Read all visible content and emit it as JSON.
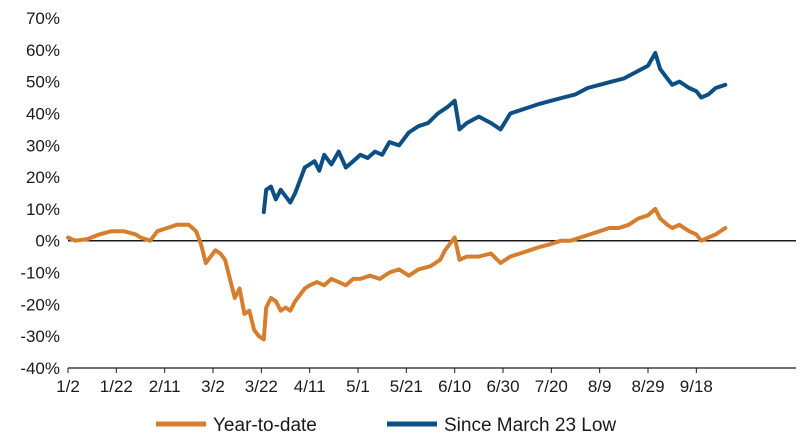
{
  "chart_data": {
    "type": "line",
    "title": "",
    "xlabel": "",
    "ylabel": "",
    "ylim": [
      -40,
      70
    ],
    "yticks": [
      70,
      60,
      50,
      40,
      30,
      20,
      10,
      0,
      -10,
      -20,
      -30,
      -40
    ],
    "ytick_labels": [
      "70%",
      "60%",
      "50%",
      "40%",
      "30%",
      "20%",
      "10%",
      "0%",
      "-10%",
      "-20%",
      "-30%",
      "-40%"
    ],
    "xtick_labels": [
      "1/2",
      "1/22",
      "2/11",
      "3/2",
      "3/22",
      "4/11",
      "5/1",
      "5/21",
      "6/10",
      "6/30",
      "7/20",
      "8/9",
      "8/29",
      "9/18"
    ],
    "grid": false,
    "zero_line": true,
    "legend_position": "bottom",
    "series": [
      {
        "name": "Year-to-date",
        "color": "#d57f2e",
        "points": [
          [
            "1/2",
            1
          ],
          [
            "1/5",
            0
          ],
          [
            "1/10",
            0.5
          ],
          [
            "1/15",
            2
          ],
          [
            "1/20",
            3
          ],
          [
            "1/25",
            3
          ],
          [
            "1/30",
            2
          ],
          [
            "2/1",
            1
          ],
          [
            "2/5",
            0
          ],
          [
            "2/8",
            3
          ],
          [
            "2/12",
            4
          ],
          [
            "2/16",
            5
          ],
          [
            "2/21",
            5
          ],
          [
            "2/24",
            3
          ],
          [
            "2/26",
            -1
          ],
          [
            "2/28",
            -7
          ],
          [
            "3/3",
            -3
          ],
          [
            "3/5",
            -4
          ],
          [
            "3/7",
            -6
          ],
          [
            "3/9",
            -12
          ],
          [
            "3/11",
            -18
          ],
          [
            "3/13",
            -15
          ],
          [
            "3/15",
            -23
          ],
          [
            "3/17",
            -22
          ],
          [
            "3/19",
            -28
          ],
          [
            "3/21",
            -30
          ],
          [
            "3/23",
            -31
          ],
          [
            "3/24",
            -21
          ],
          [
            "3/26",
            -18
          ],
          [
            "3/28",
            -19
          ],
          [
            "3/30",
            -22
          ],
          [
            "4/1",
            -21
          ],
          [
            "4/3",
            -22
          ],
          [
            "4/5",
            -19
          ],
          [
            "4/7",
            -17
          ],
          [
            "4/9",
            -15
          ],
          [
            "4/11",
            -14
          ],
          [
            "4/14",
            -13
          ],
          [
            "4/17",
            -14
          ],
          [
            "4/20",
            -12
          ],
          [
            "4/23",
            -13
          ],
          [
            "4/26",
            -14
          ],
          [
            "4/29",
            -12
          ],
          [
            "5/2",
            -12
          ],
          [
            "5/6",
            -11
          ],
          [
            "5/10",
            -12
          ],
          [
            "5/14",
            -10
          ],
          [
            "5/18",
            -9
          ],
          [
            "5/22",
            -11
          ],
          [
            "5/26",
            -9
          ],
          [
            "5/31",
            -8
          ],
          [
            "6/4",
            -6
          ],
          [
            "6/6",
            -3
          ],
          [
            "6/9",
            0
          ],
          [
            "6/10",
            1
          ],
          [
            "6/12",
            -6
          ],
          [
            "6/15",
            -5
          ],
          [
            "6/20",
            -5
          ],
          [
            "6/25",
            -4
          ],
          [
            "6/29",
            -7
          ],
          [
            "7/3",
            -5
          ],
          [
            "7/7",
            -4
          ],
          [
            "7/11",
            -3
          ],
          [
            "7/15",
            -2
          ],
          [
            "7/20",
            -1
          ],
          [
            "7/24",
            0
          ],
          [
            "7/28",
            0
          ],
          [
            "8/1",
            1
          ],
          [
            "8/5",
            2
          ],
          [
            "8/9",
            3
          ],
          [
            "8/13",
            4
          ],
          [
            "8/17",
            4
          ],
          [
            "8/21",
            5
          ],
          [
            "8/25",
            7
          ],
          [
            "8/29",
            8
          ],
          [
            "9/1",
            10
          ],
          [
            "9/3",
            7
          ],
          [
            "9/6",
            5
          ],
          [
            "9/8",
            4
          ],
          [
            "9/11",
            5
          ],
          [
            "9/15",
            3
          ],
          [
            "9/18",
            2
          ],
          [
            "9/20",
            0
          ],
          [
            "9/23",
            1
          ],
          [
            "9/26",
            2
          ],
          [
            "9/30",
            4
          ]
        ]
      },
      {
        "name": "Since March 23 Low",
        "color": "#0d4e85",
        "points": [
          [
            "3/23",
            9
          ],
          [
            "3/24",
            16
          ],
          [
            "3/26",
            17
          ],
          [
            "3/28",
            13
          ],
          [
            "3/30",
            16
          ],
          [
            "4/1",
            14
          ],
          [
            "4/3",
            12
          ],
          [
            "4/5",
            15
          ],
          [
            "4/7",
            19
          ],
          [
            "4/9",
            23
          ],
          [
            "4/11",
            24
          ],
          [
            "4/13",
            25
          ],
          [
            "4/15",
            22
          ],
          [
            "4/17",
            27
          ],
          [
            "4/20",
            24
          ],
          [
            "4/23",
            28
          ],
          [
            "4/26",
            23
          ],
          [
            "4/29",
            25
          ],
          [
            "5/2",
            27
          ],
          [
            "5/5",
            26
          ],
          [
            "5/8",
            28
          ],
          [
            "5/11",
            27
          ],
          [
            "5/14",
            31
          ],
          [
            "5/18",
            30
          ],
          [
            "5/22",
            34
          ],
          [
            "5/26",
            36
          ],
          [
            "5/30",
            37
          ],
          [
            "6/3",
            40
          ],
          [
            "6/7",
            42
          ],
          [
            "6/10",
            44
          ],
          [
            "6/12",
            35
          ],
          [
            "6/15",
            37
          ],
          [
            "6/20",
            39
          ],
          [
            "6/25",
            37
          ],
          [
            "6/29",
            35
          ],
          [
            "7/3",
            40
          ],
          [
            "7/7",
            41
          ],
          [
            "7/11",
            42
          ],
          [
            "7/15",
            43
          ],
          [
            "7/20",
            44
          ],
          [
            "7/25",
            45
          ],
          [
            "7/30",
            46
          ],
          [
            "8/4",
            48
          ],
          [
            "8/9",
            49
          ],
          [
            "8/14",
            50
          ],
          [
            "8/19",
            51
          ],
          [
            "8/24",
            53
          ],
          [
            "8/29",
            55
          ],
          [
            "9/1",
            59
          ],
          [
            "9/3",
            54
          ],
          [
            "9/6",
            51
          ],
          [
            "9/8",
            49
          ],
          [
            "9/11",
            50
          ],
          [
            "9/15",
            48
          ],
          [
            "9/18",
            47
          ],
          [
            "9/20",
            45
          ],
          [
            "9/23",
            46
          ],
          [
            "9/26",
            48
          ],
          [
            "9/30",
            49
          ]
        ]
      }
    ]
  }
}
